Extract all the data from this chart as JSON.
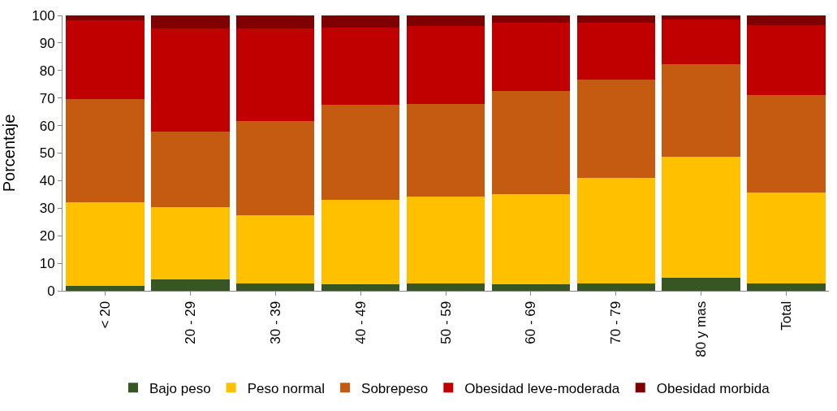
{
  "chart_data": {
    "type": "bar",
    "stacked": true,
    "ylabel": "Porcentaje",
    "categories": [
      "< 20",
      "20 - 29",
      "30 - 39",
      "40 - 49",
      "50 - 59",
      "60 - 69",
      "70 - 79",
      "80 y mas",
      "Total"
    ],
    "series": [
      {
        "name": "Bajo peso",
        "color": "#375623",
        "values": [
          1.7,
          4.0,
          2.6,
          2.3,
          2.6,
          2.3,
          2.6,
          4.8,
          2.6
        ]
      },
      {
        "name": "Peso normal",
        "color": "#ffc000",
        "values": [
          30.4,
          26.4,
          24.7,
          30.7,
          31.5,
          32.9,
          38.3,
          43.8,
          33.2
        ]
      },
      {
        "name": "Sobrepeso",
        "color": "#c55a11",
        "values": [
          37.5,
          27.3,
          34.3,
          34.6,
          33.8,
          37.5,
          35.8,
          33.8,
          35.2
        ]
      },
      {
        "name": "Obesidad leve-moderada",
        "color": "#c00000",
        "values": [
          28.7,
          37.5,
          33.6,
          28.1,
          28.4,
          24.7,
          20.7,
          16.2,
          25.6
        ]
      },
      {
        "name": "Obesidad morbida",
        "color": "#7f0000",
        "values": [
          1.7,
          4.8,
          4.8,
          4.3,
          3.7,
          2.6,
          2.6,
          1.4,
          3.4
        ]
      }
    ],
    "ylim": [
      0,
      100
    ],
    "yticks": [
      0,
      10,
      20,
      30,
      40,
      50,
      60,
      70,
      80,
      90,
      100
    ],
    "legend": "bottom"
  }
}
